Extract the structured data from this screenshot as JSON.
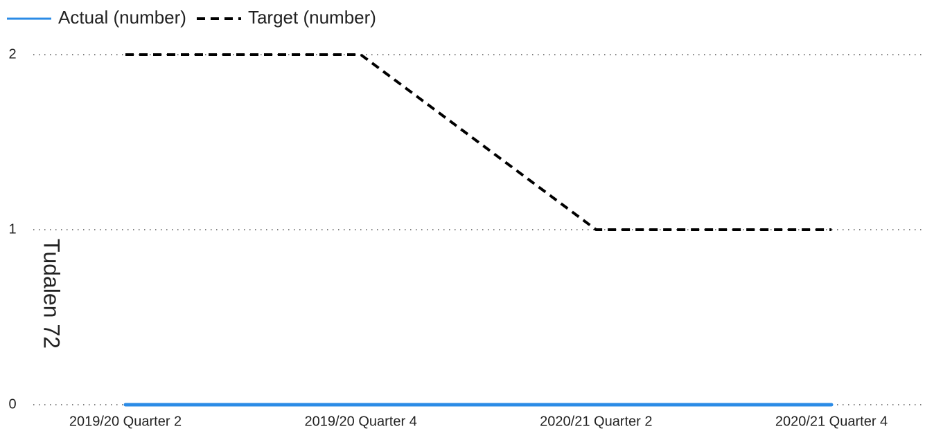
{
  "chart_data": {
    "type": "line",
    "categories": [
      "2019/20 Quarter 2",
      "2019/20 Quarter 4",
      "2020/21 Quarter 2",
      "2020/21 Quarter 4"
    ],
    "series": [
      {
        "name": "Actual (number)",
        "color": "#2b8be6",
        "values": [
          0,
          0,
          0,
          0
        ]
      },
      {
        "name": "Target (number)",
        "color": "#000000",
        "dashed": true,
        "values": [
          2,
          2,
          1,
          1
        ]
      }
    ],
    "ylabel": "Tudalen 72",
    "ylim": [
      0,
      2
    ],
    "yticks": [
      0,
      1,
      2
    ],
    "grid": true,
    "legend": "top-left"
  }
}
